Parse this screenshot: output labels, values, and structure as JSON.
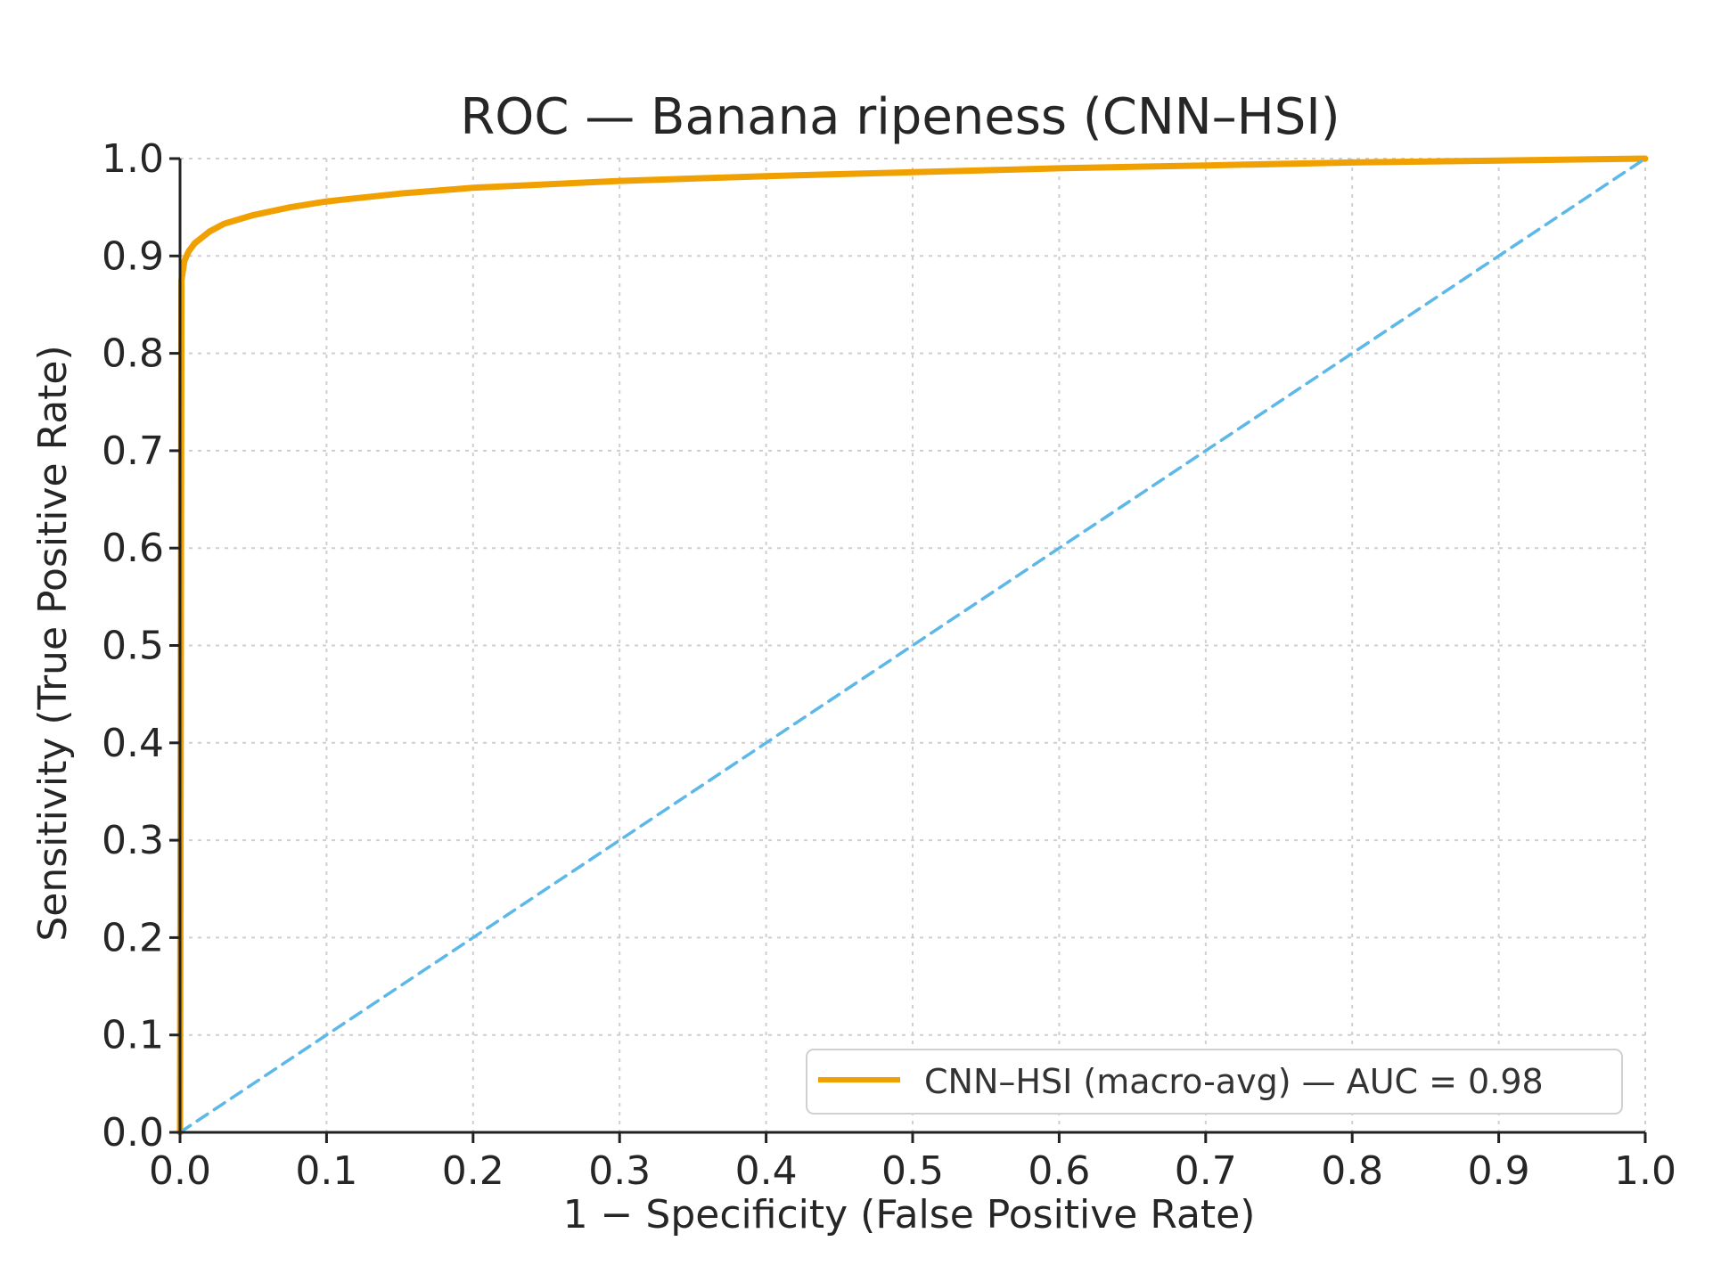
{
  "chart_data": {
    "type": "line",
    "title": "ROC — Banana ripeness (CNN–HSI)",
    "xlabel": "1 − Specificity (False Positive Rate)",
    "ylabel": "Sensitivity (True Positive Rate)",
    "xlim": [
      0,
      1
    ],
    "ylim": [
      0,
      1
    ],
    "xticks": [
      "0.0",
      "0.1",
      "0.2",
      "0.3",
      "0.4",
      "0.5",
      "0.6",
      "0.7",
      "0.8",
      "0.9",
      "1.0"
    ],
    "yticks": [
      "0.0",
      "0.1",
      "0.2",
      "0.3",
      "0.4",
      "0.5",
      "0.6",
      "0.7",
      "0.8",
      "0.9",
      "1.0"
    ],
    "grid": true,
    "legend_position": "bottom-right",
    "series": [
      {
        "name": "CNN–HSI (macro-avg) — AUC = 0.98",
        "color": "#f0a000",
        "style": "solid",
        "x": [
          0,
          0.001,
          0.003,
          0.006,
          0.01,
          0.02,
          0.03,
          0.05,
          0.075,
          0.1,
          0.15,
          0.2,
          0.3,
          0.4,
          0.5,
          0.6,
          0.7,
          0.8,
          0.9,
          1.0
        ],
        "y": [
          0,
          0.875,
          0.895,
          0.905,
          0.913,
          0.925,
          0.933,
          0.942,
          0.95,
          0.956,
          0.964,
          0.97,
          0.977,
          0.982,
          0.986,
          0.99,
          0.993,
          0.996,
          0.998,
          1.0
        ]
      },
      {
        "name": "",
        "color": "#5bb8e8",
        "style": "dashed",
        "x": [
          0,
          1
        ],
        "y": [
          0,
          1
        ]
      }
    ]
  }
}
